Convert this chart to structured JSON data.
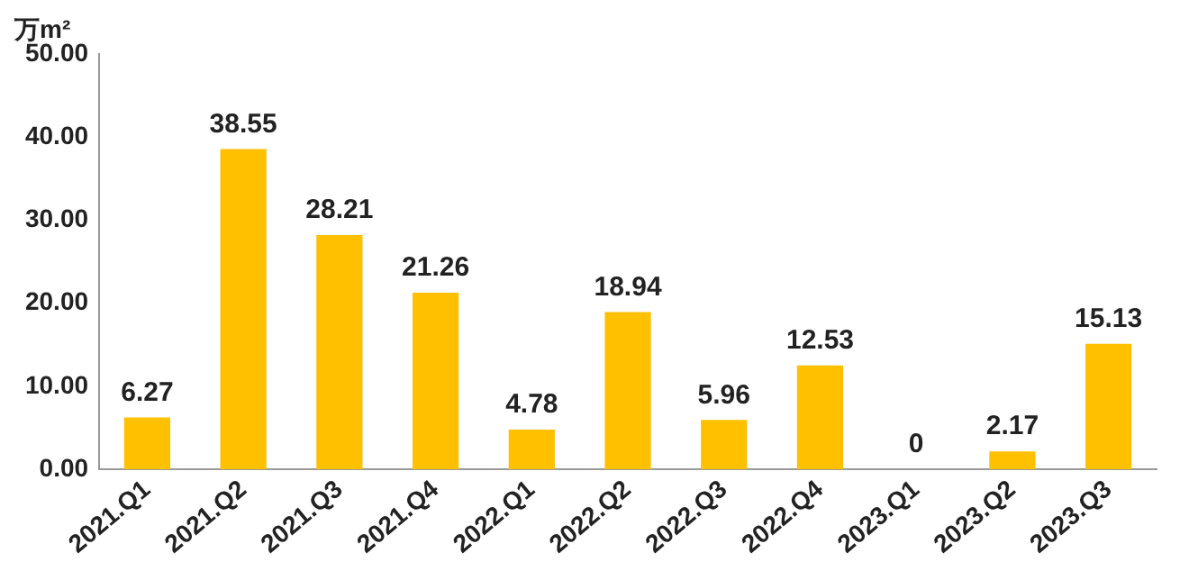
{
  "chart_data": {
    "type": "bar",
    "ylabel": "万m²",
    "categories": [
      "2021.Q1",
      "2021.Q2",
      "2021.Q3",
      "2021.Q4",
      "2022.Q1",
      "2022.Q2",
      "2022.Q3",
      "2022.Q4",
      "2023.Q1",
      "2023.Q2",
      "2023.Q3"
    ],
    "values": [
      6.27,
      38.55,
      28.21,
      21.26,
      4.78,
      18.94,
      5.96,
      12.53,
      0,
      2.17,
      15.13
    ],
    "color": "#ffc000",
    "ylim": [
      0,
      50
    ],
    "yticks": [
      {
        "value": 0,
        "label": "0.00"
      },
      {
        "value": 10,
        "label": "10.00"
      },
      {
        "value": 20,
        "label": "20.00"
      },
      {
        "value": 30,
        "label": "30.00"
      },
      {
        "value": 40,
        "label": "40.00"
      },
      {
        "value": 50,
        "label": "50.00"
      }
    ],
    "data_labels": true,
    "grid": false,
    "legend": false
  }
}
